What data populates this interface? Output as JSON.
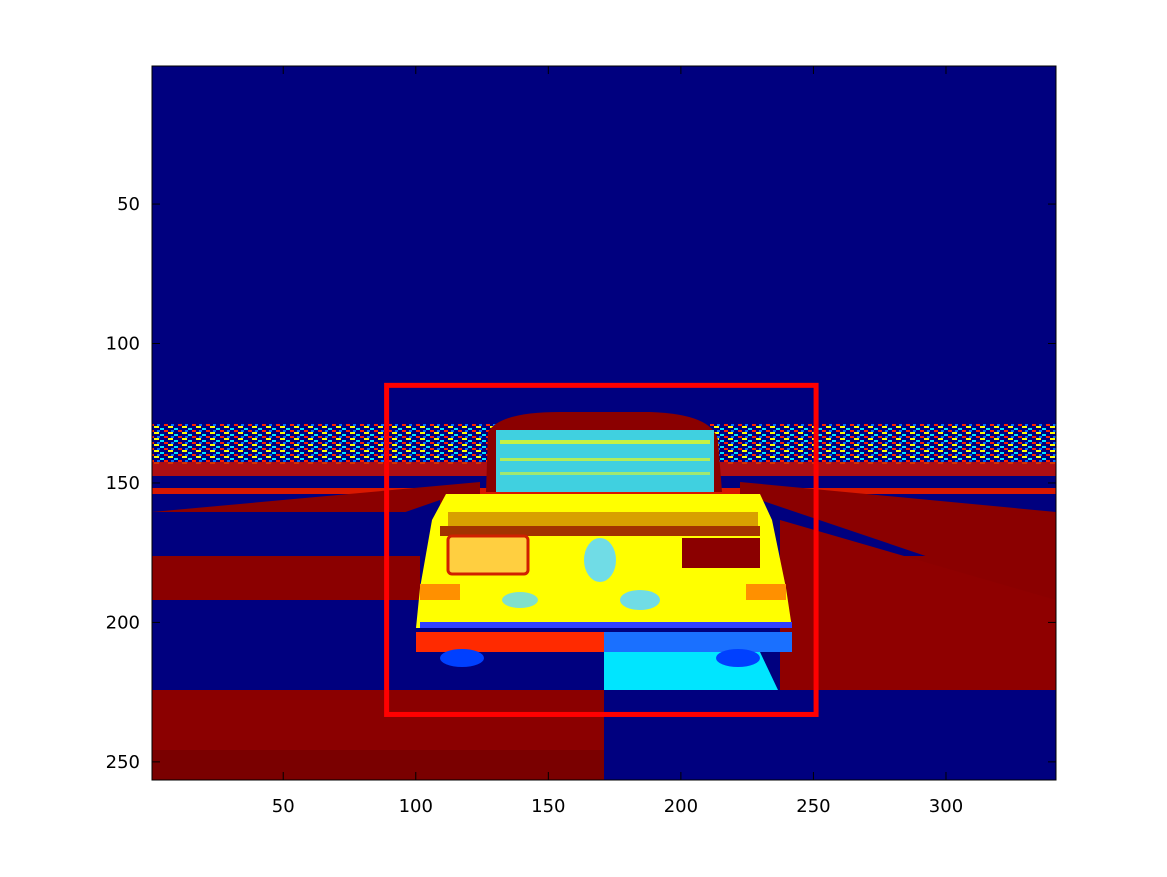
{
  "figure": {
    "x_axis": {
      "ticks": [
        "50",
        "100",
        "150",
        "200",
        "250",
        "300"
      ]
    },
    "y_axis": {
      "ticks": [
        "50",
        "100",
        "150",
        "200",
        "250"
      ]
    }
  },
  "colors": {
    "sky": "#00007f",
    "road_red": "#8b0000",
    "car_yellow": "#ffff00",
    "car_cyan": "#00e5ff",
    "box": "#ff0000"
  },
  "bounding_box": {
    "x": [
      89,
      251
    ],
    "y": [
      115,
      233
    ]
  }
}
